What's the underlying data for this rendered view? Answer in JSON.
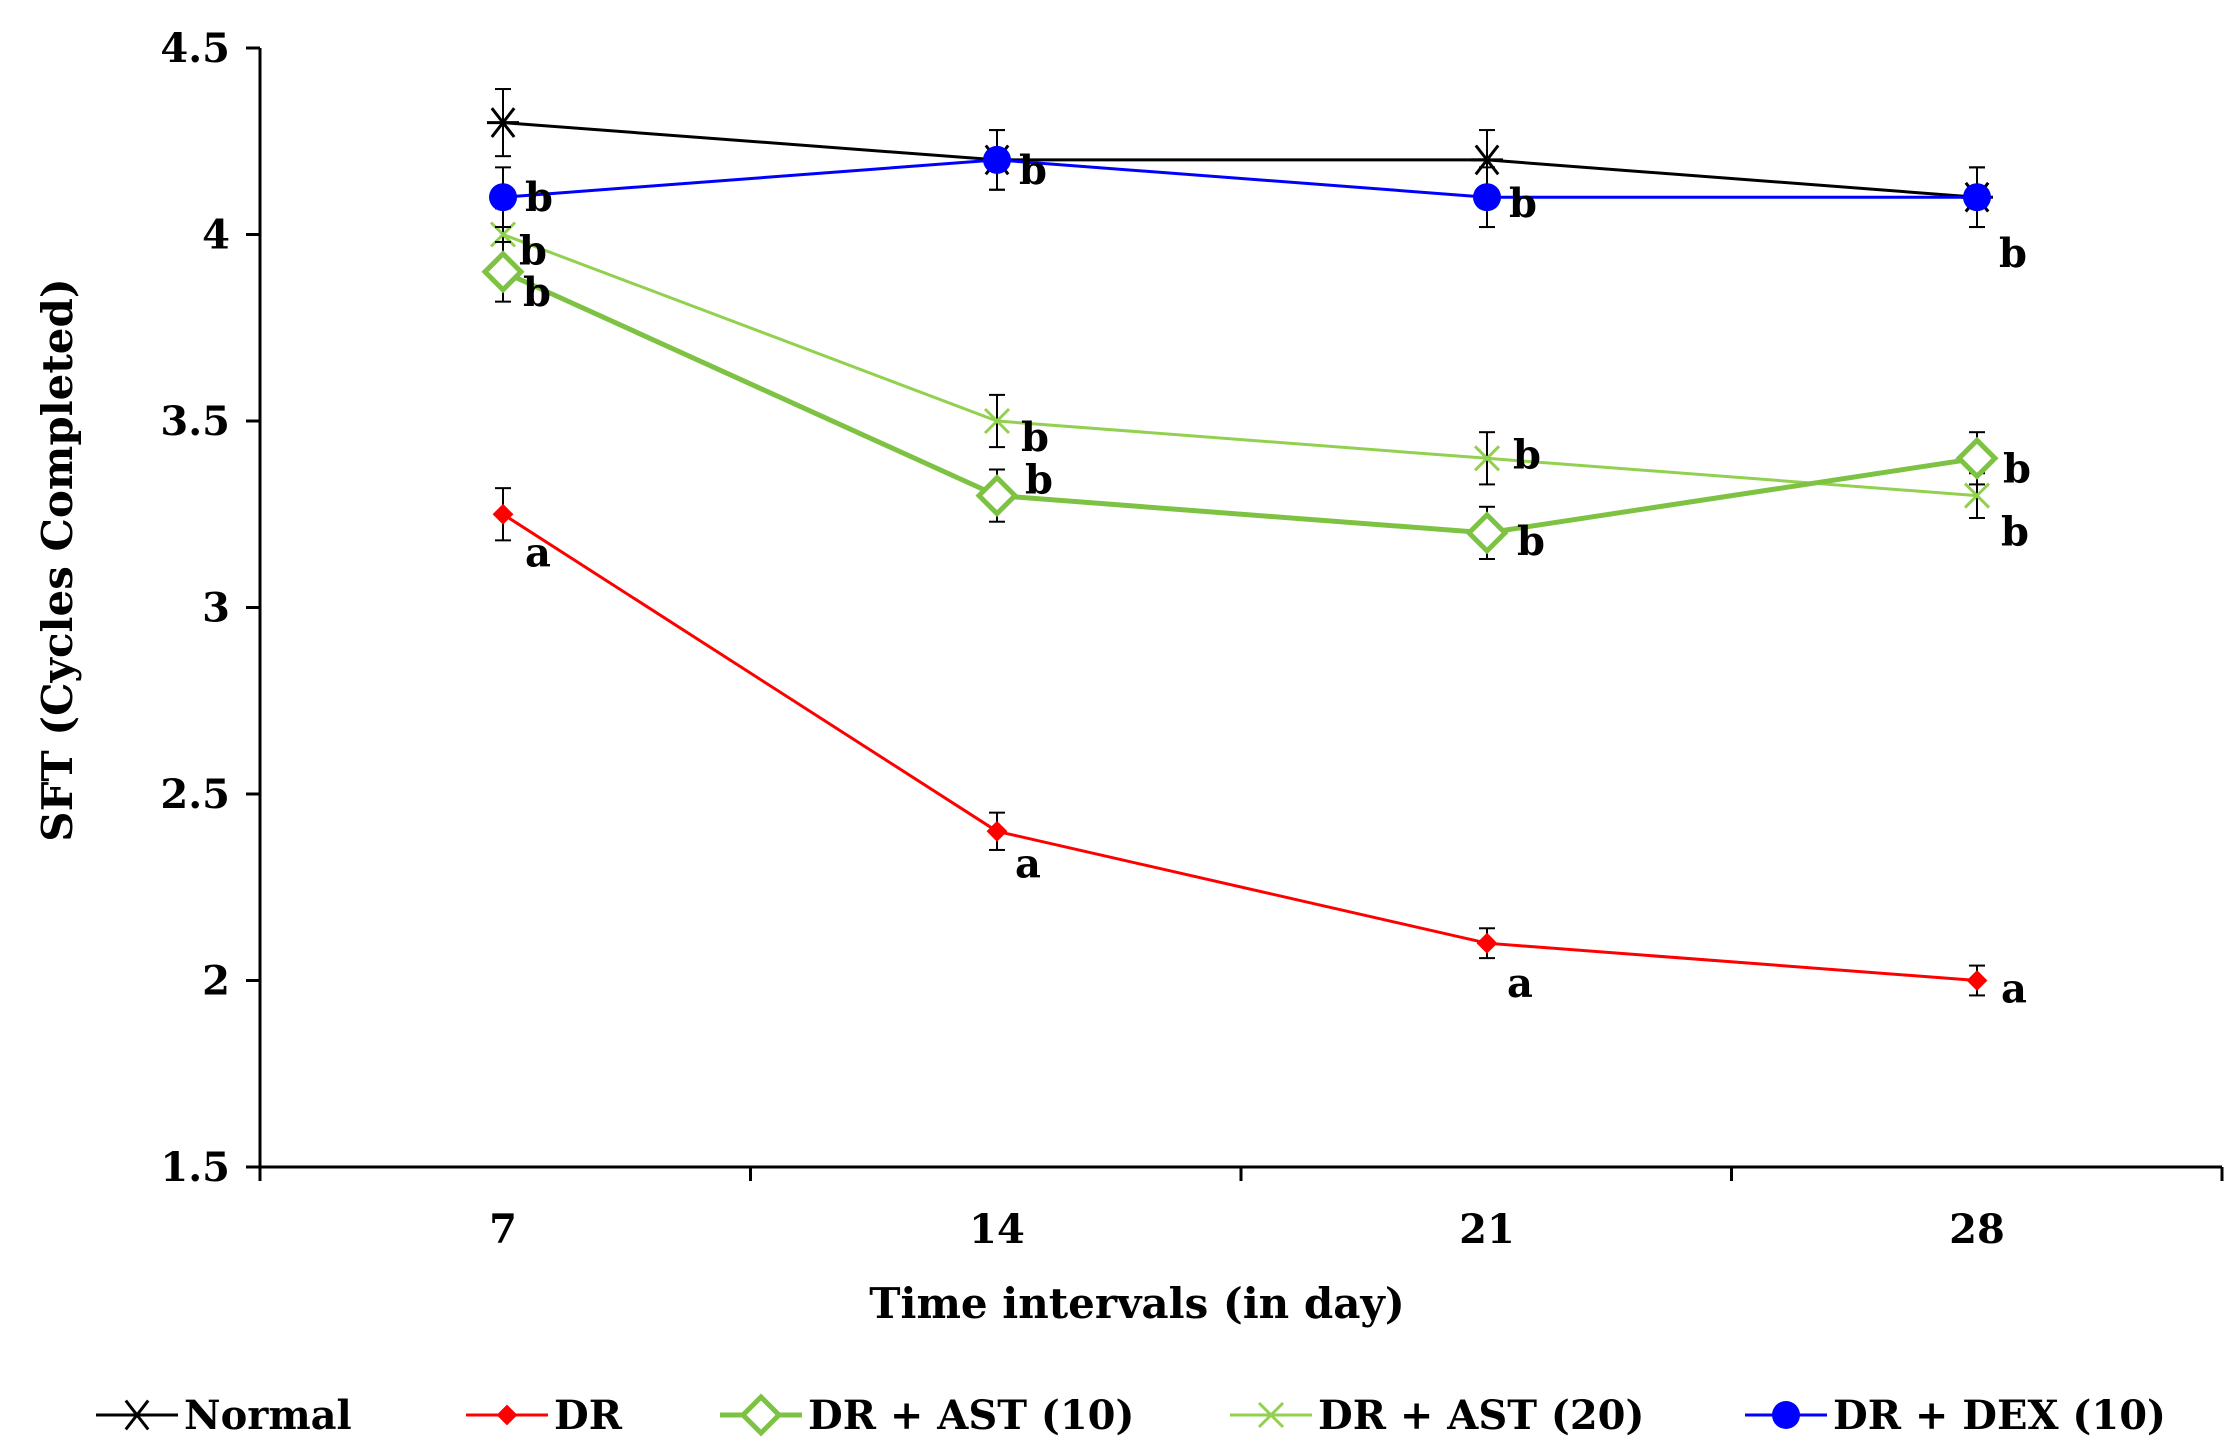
{
  "chart_data": {
    "type": "line",
    "title": "",
    "xlabel": "Time intervals (in day)",
    "ylabel": "SFT (Cycles Completed)",
    "x": [
      7,
      14,
      21,
      28
    ],
    "x_tick_labels": [
      "7",
      "14",
      "21",
      "28"
    ],
    "ylim": [
      1.5,
      4.5
    ],
    "y_ticks": [
      1.5,
      2,
      2.5,
      3,
      3.5,
      4,
      4.5
    ],
    "y_tick_labels": [
      "1.5",
      "2",
      "2.5",
      "3",
      "3.5",
      "4",
      "4.5"
    ],
    "grid": false,
    "legend_position": "bottom",
    "series": [
      {
        "name": "Normal",
        "color": "#000000",
        "marker": "asterisk",
        "values": [
          4.3,
          4.2,
          4.2,
          4.1
        ],
        "errors": [
          0.09,
          0.08,
          0.08,
          0.08
        ],
        "labels": [
          "",
          "",
          "",
          ""
        ]
      },
      {
        "name": "DR",
        "color": "#ff0000",
        "marker": "diamond-filled",
        "values": [
          3.25,
          2.4,
          2.1,
          2.0
        ],
        "errors": [
          0.07,
          0.05,
          0.04,
          0.04
        ],
        "labels": [
          "a",
          "a",
          "a",
          "a"
        ]
      },
      {
        "name": "DR + AST (10)",
        "color": "#7dc242",
        "marker": "diamond-open",
        "values": [
          3.9,
          3.3,
          3.2,
          3.4
        ],
        "errors": [
          0.08,
          0.07,
          0.07,
          0.07
        ],
        "labels": [
          "b",
          "b",
          "b",
          "b"
        ]
      },
      {
        "name": "DR + AST (20)",
        "color": "#92d050",
        "marker": "x",
        "values": [
          4.0,
          3.5,
          3.4,
          3.3
        ],
        "errors": [
          0.07,
          0.07,
          0.07,
          0.06
        ],
        "labels": [
          "b",
          "b",
          "b",
          "b"
        ]
      },
      {
        "name": "DR + DEX (10)",
        "color": "#0000ff",
        "marker": "circle",
        "values": [
          4.1,
          4.2,
          4.1,
          4.1
        ],
        "errors": [
          0.08,
          0.08,
          0.08,
          0.08
        ],
        "labels": [
          "b",
          "b",
          "b",
          "b"
        ]
      }
    ]
  }
}
